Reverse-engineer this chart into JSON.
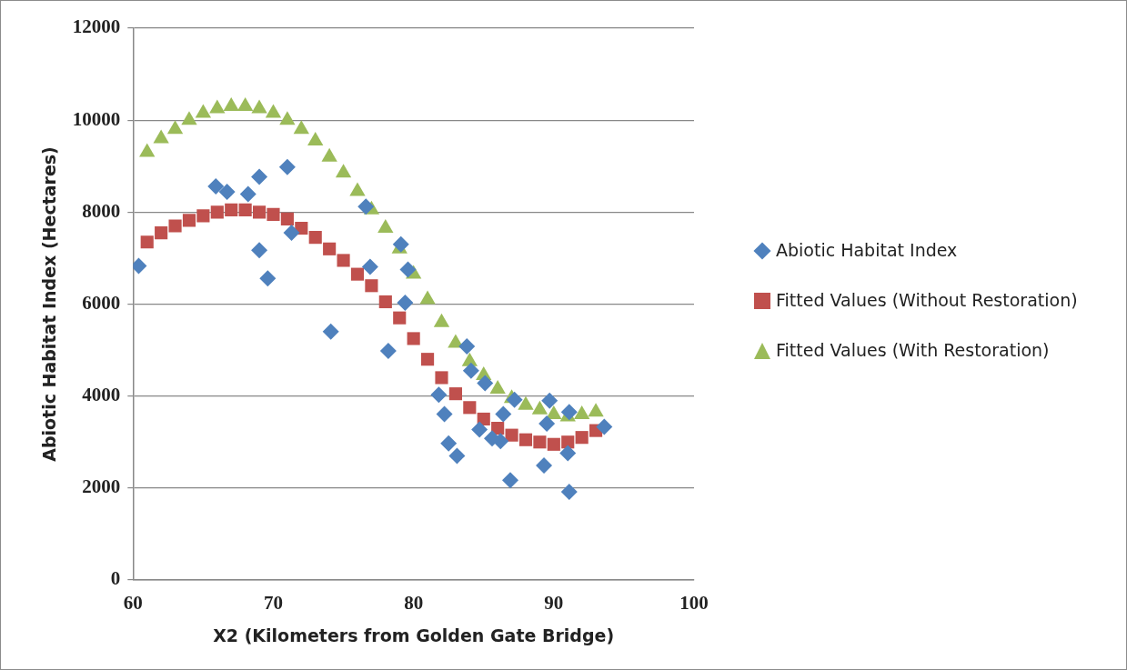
{
  "chart_data": {
    "type": "scatter",
    "xlabel": "X2 (Kilometers from Golden Gate Bridge)",
    "ylabel": "Abiotic Habitat Index (Hectares)",
    "xlim": [
      60,
      100
    ],
    "xticks": [
      60,
      70,
      80,
      90,
      100
    ],
    "ylim": [
      0,
      12000
    ],
    "yticks": [
      0,
      2000,
      4000,
      6000,
      8000,
      10000,
      12000
    ],
    "grid": "y",
    "legend": "right",
    "series": [
      {
        "name": "Abiotic Habitat Index",
        "color": "#4f81bd",
        "marker": "diamond",
        "x": [
          60.4,
          65.9,
          66.7,
          68.2,
          69,
          71,
          69,
          69.6,
          71.3,
          74.1,
          78.2,
          76.6,
          76.9,
          79.1,
          79.6,
          79.4,
          83.8,
          84.1,
          85.1,
          81.8,
          82.2,
          82.5,
          83.1,
          84.7,
          86.2,
          86.4,
          86.9,
          89.7,
          89.5,
          89.3,
          91.1,
          91,
          87.2,
          85.6,
          91.1,
          93.6
        ],
        "values": [
          6830,
          8560,
          8440,
          8390,
          8770,
          8980,
          7170,
          6560,
          7550,
          5400,
          4980,
          8120,
          6810,
          7300,
          6750,
          6030,
          5080,
          4550,
          4280,
          4030,
          3610,
          2970,
          2700,
          3270,
          3020,
          3610,
          2170,
          3900,
          3400,
          2490,
          1920,
          2760,
          3920,
          3080,
          3650,
          3330
        ]
      },
      {
        "name": "Fitted Values (Without Restoration)",
        "color": "#c0504d",
        "marker": "square",
        "x": [
          61,
          62,
          63,
          64,
          65,
          66,
          67,
          68,
          69,
          70,
          71,
          72,
          73,
          74,
          75,
          76,
          77,
          78,
          79,
          80,
          81,
          82,
          83,
          84,
          85,
          86,
          87,
          88,
          89,
          90,
          91,
          92,
          93
        ],
        "values": [
          7350,
          7550,
          7700,
          7820,
          7920,
          8000,
          8050,
          8050,
          8000,
          7950,
          7850,
          7650,
          7450,
          7200,
          6950,
          6650,
          6400,
          6050,
          5700,
          5250,
          4800,
          4400,
          4050,
          3750,
          3500,
          3300,
          3150,
          3050,
          3000,
          2950,
          3000,
          3100,
          3250
        ]
      },
      {
        "name": "Fitted Values (With Restoration)",
        "color": "#9bbb59",
        "marker": "triangle",
        "x": [
          61,
          62,
          63,
          64,
          65,
          66,
          67,
          68,
          69,
          70,
          71,
          72,
          73,
          74,
          75,
          76,
          77,
          78,
          79,
          80,
          81,
          82,
          83,
          84,
          85,
          86,
          87,
          88,
          89,
          90,
          91,
          92,
          93
        ],
        "values": [
          9300,
          9600,
          9800,
          10000,
          10150,
          10250,
          10300,
          10300,
          10250,
          10150,
          10000,
          9800,
          9550,
          9200,
          8850,
          8450,
          8050,
          7650,
          7200,
          6650,
          6100,
          5600,
          5150,
          4750,
          4450,
          4150,
          3950,
          3800,
          3700,
          3600,
          3550,
          3600,
          3650
        ]
      }
    ]
  }
}
